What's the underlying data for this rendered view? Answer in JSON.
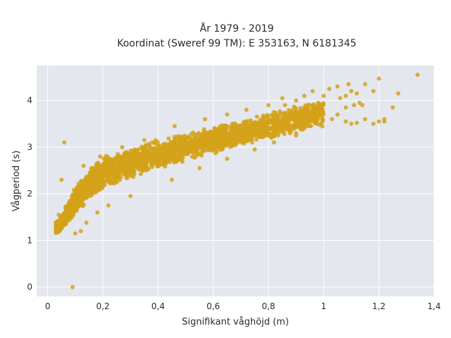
{
  "chart_data": {
    "type": "scatter",
    "title_lines": [
      "År 1979 - 2019",
      "Koordinat (Sweref 99 TM): E 353163, N 6181345"
    ],
    "xlabel": "Signifikant våghöjd (m)",
    "ylabel": "Vågperiod (s)",
    "xlim": [
      -0.04,
      1.4
    ],
    "ylim": [
      -0.2,
      4.75
    ],
    "x_ticks": [
      0,
      0.2,
      0.4,
      0.6,
      0.8,
      1,
      1.2,
      1.4
    ],
    "x_tick_labels": [
      "0",
      "0,2",
      "0,4",
      "0,6",
      "0,8",
      "1",
      "1,2",
      "1,4"
    ],
    "y_ticks": [
      0,
      1,
      2,
      3,
      4
    ],
    "y_tick_labels": [
      "0",
      "1",
      "2",
      "3",
      "4"
    ],
    "grid": true,
    "plot_background": "#e5e7ef",
    "grid_color": "#ffffff",
    "marker_color": "#d4a21a",
    "band": {
      "x_range": [
        0.03,
        1.0
      ],
      "y_center": [
        1.3,
        1.85,
        2.2,
        2.45,
        2.65,
        2.85,
        3.0,
        3.15,
        3.3,
        3.45,
        3.6,
        3.72
      ],
      "x_at": [
        0.04,
        0.1,
        0.15,
        0.2,
        0.3,
        0.4,
        0.5,
        0.6,
        0.7,
        0.8,
        0.9,
        1.0
      ],
      "half_width": [
        0.15,
        0.3,
        0.35,
        0.35,
        0.35,
        0.33,
        0.3,
        0.3,
        0.28,
        0.28,
        0.3,
        0.3
      ]
    },
    "points": [
      [
        0.09,
        0.0
      ],
      [
        0.06,
        3.1
      ],
      [
        0.05,
        2.3
      ],
      [
        1.34,
        4.55
      ],
      [
        1.27,
        4.15
      ],
      [
        1.2,
        4.47
      ],
      [
        1.25,
        3.85
      ],
      [
        1.22,
        3.6
      ],
      [
        1.2,
        3.55
      ],
      [
        1.18,
        4.2
      ],
      [
        1.15,
        4.35
      ],
      [
        1.12,
        4.15
      ],
      [
        1.13,
        3.95
      ],
      [
        1.1,
        4.2
      ],
      [
        1.08,
        4.1
      ],
      [
        1.08,
        3.85
      ],
      [
        1.05,
        4.3
      ],
      [
        1.02,
        4.25
      ],
      [
        1.0,
        4.1
      ],
      [
        0.98,
        3.95
      ],
      [
        1.03,
        3.6
      ],
      [
        1.05,
        3.7
      ],
      [
        1.08,
        3.55
      ],
      [
        1.1,
        3.5
      ],
      [
        1.12,
        3.52
      ],
      [
        1.15,
        3.6
      ],
      [
        1.18,
        3.5
      ],
      [
        1.22,
        3.55
      ],
      [
        0.95,
        3.45
      ],
      [
        0.92,
        3.4
      ],
      [
        0.9,
        3.3
      ],
      [
        0.88,
        3.35
      ],
      [
        0.96,
        4.2
      ],
      [
        0.93,
        4.1
      ],
      [
        0.9,
        4.0
      ],
      [
        0.85,
        4.05
      ],
      [
        0.86,
        3.9
      ],
      [
        0.82,
        3.75
      ],
      [
        1.06,
        4.05
      ],
      [
        1.11,
        3.9
      ],
      [
        1.14,
        3.9
      ],
      [
        1.09,
        4.35
      ],
      [
        0.14,
        1.38
      ],
      [
        0.12,
        1.2
      ],
      [
        0.1,
        1.15
      ],
      [
        0.03,
        1.2
      ],
      [
        0.04,
        1.55
      ],
      [
        0.18,
        1.6
      ],
      [
        0.13,
        2.6
      ],
      [
        0.19,
        2.8
      ],
      [
        0.27,
        3.0
      ],
      [
        0.35,
        3.15
      ],
      [
        0.46,
        3.45
      ],
      [
        0.57,
        3.6
      ],
      [
        0.65,
        3.7
      ],
      [
        0.72,
        3.8
      ],
      [
        0.8,
        3.9
      ],
      [
        0.22,
        1.75
      ],
      [
        0.3,
        1.95
      ],
      [
        0.45,
        2.3
      ],
      [
        0.55,
        2.55
      ],
      [
        0.65,
        2.75
      ],
      [
        0.75,
        2.95
      ],
      [
        0.82,
        3.1
      ],
      [
        0.9,
        3.25
      ]
    ]
  }
}
